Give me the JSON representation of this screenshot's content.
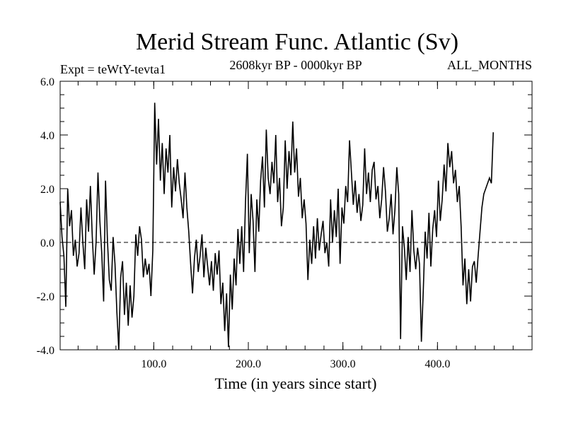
{
  "colors": {
    "line": "#000000",
    "background": "#ffffff"
  },
  "chart_data": {
    "type": "line",
    "title": "Merid Stream Func. Atlantic (Sv)",
    "subtitle": "2608kyr BP - 0000kyr BP",
    "experiment_label": "Expt = teWtY-tevta1",
    "period_label": "ALL_MONTHS",
    "xlabel": "Time (in years since start)",
    "ylabel": "",
    "xlim": [
      1,
      500
    ],
    "ylim": [
      -4.0,
      6.0
    ],
    "x_ticks": [
      100,
      200,
      300,
      400
    ],
    "x_tick_labels": [
      "100.0",
      "200.0",
      "300.0",
      "400.0"
    ],
    "y_ticks": [
      -4,
      -2,
      0,
      2,
      4,
      6
    ],
    "y_tick_labels": [
      "-4.0",
      "-2.0",
      "0.0",
      "2.0",
      "4.0",
      "6.0"
    ],
    "reference_line": {
      "y": 0.0,
      "style": "dashed"
    },
    "x_step": 2,
    "series": [
      {
        "name": "Merid Stream Func. Atlantic",
        "x_start": 1,
        "values": [
          1.5,
          0.2,
          -0.5,
          -2.4,
          2.0,
          0.6,
          1.2,
          -0.5,
          0.1,
          -0.9,
          -0.4,
          1.3,
          0.0,
          -1.0,
          1.6,
          0.4,
          2.1,
          0.2,
          -1.2,
          0.0,
          2.6,
          0.8,
          -0.4,
          -2.2,
          2.3,
          0.1,
          -1.4,
          -1.8,
          0.2,
          -0.8,
          -2.6,
          -4.0,
          -1.3,
          -0.7,
          -2.7,
          -1.5,
          -3.1,
          -1.6,
          -2.8,
          -2.0,
          0.3,
          -0.5,
          0.6,
          0.1,
          -1.3,
          -0.6,
          -1.2,
          -0.8,
          -2.0,
          -0.3,
          5.2,
          2.9,
          4.6,
          2.3,
          3.7,
          1.8,
          3.5,
          2.6,
          4.0,
          1.3,
          2.8,
          1.9,
          3.1,
          2.2,
          1.6,
          0.9,
          2.6,
          1.3,
          0.4,
          -0.8,
          -1.9,
          -0.6,
          0.1,
          -1.1,
          -0.5,
          0.3,
          -1.3,
          -0.2,
          -0.9,
          -1.6,
          -0.7,
          -1.8,
          -0.4,
          -1.2,
          -0.3,
          -2.3,
          -1.5,
          -3.3,
          -1.9,
          -3.9,
          -1.2,
          -2.5,
          -0.6,
          -1.6,
          0.5,
          -0.8,
          0.6,
          -1.1,
          1.5,
          3.3,
          -0.4,
          1.8,
          0.8,
          -1.1,
          1.6,
          0.4,
          2.3,
          3.2,
          1.3,
          4.2,
          2.4,
          1.8,
          3.0,
          2.2,
          4.0,
          1.5,
          2.4,
          0.6,
          1.3,
          3.8,
          2.0,
          3.4,
          2.5,
          4.5,
          2.6,
          3.5,
          1.7,
          2.4,
          0.9,
          1.6,
          0.7,
          -1.4,
          0.1,
          -0.8,
          0.6,
          -0.6,
          0.9,
          -0.3,
          0.3,
          0.8,
          -0.4,
          0.0,
          -0.9,
          1.6,
          0.0,
          1.2,
          0.2,
          2.0,
          -0.8,
          1.3,
          0.7,
          2.1,
          1.5,
          3.8,
          2.6,
          1.4,
          2.3,
          1.1,
          1.8,
          0.8,
          1.4,
          3.5,
          1.8,
          2.6,
          1.5,
          2.7,
          3.0,
          1.6,
          2.1,
          0.9,
          1.6,
          2.8,
          1.9,
          0.4,
          0.9,
          1.8,
          0.3,
          1.2,
          2.8,
          1.8,
          -3.6,
          0.6,
          -0.2,
          -1.4,
          0.2,
          -1.1,
          1.2,
          -0.3,
          -1.0,
          -0.2,
          -0.8,
          -3.7,
          -1.8,
          0.4,
          -0.6,
          1.1,
          -0.9,
          0.5,
          1.2,
          0.2,
          2.3,
          0.8,
          1.6,
          2.9,
          1.9,
          3.7,
          2.8,
          3.4,
          2.2,
          2.7,
          1.5,
          2.1,
          0.6,
          -1.6,
          -0.6,
          -2.3,
          -1.0,
          -2.2,
          -0.9,
          -0.7,
          -1.5,
          -0.5,
          0.4,
          1.3,
          1.8,
          2.0,
          2.2,
          2.4,
          2.2,
          4.1
        ]
      }
    ]
  }
}
